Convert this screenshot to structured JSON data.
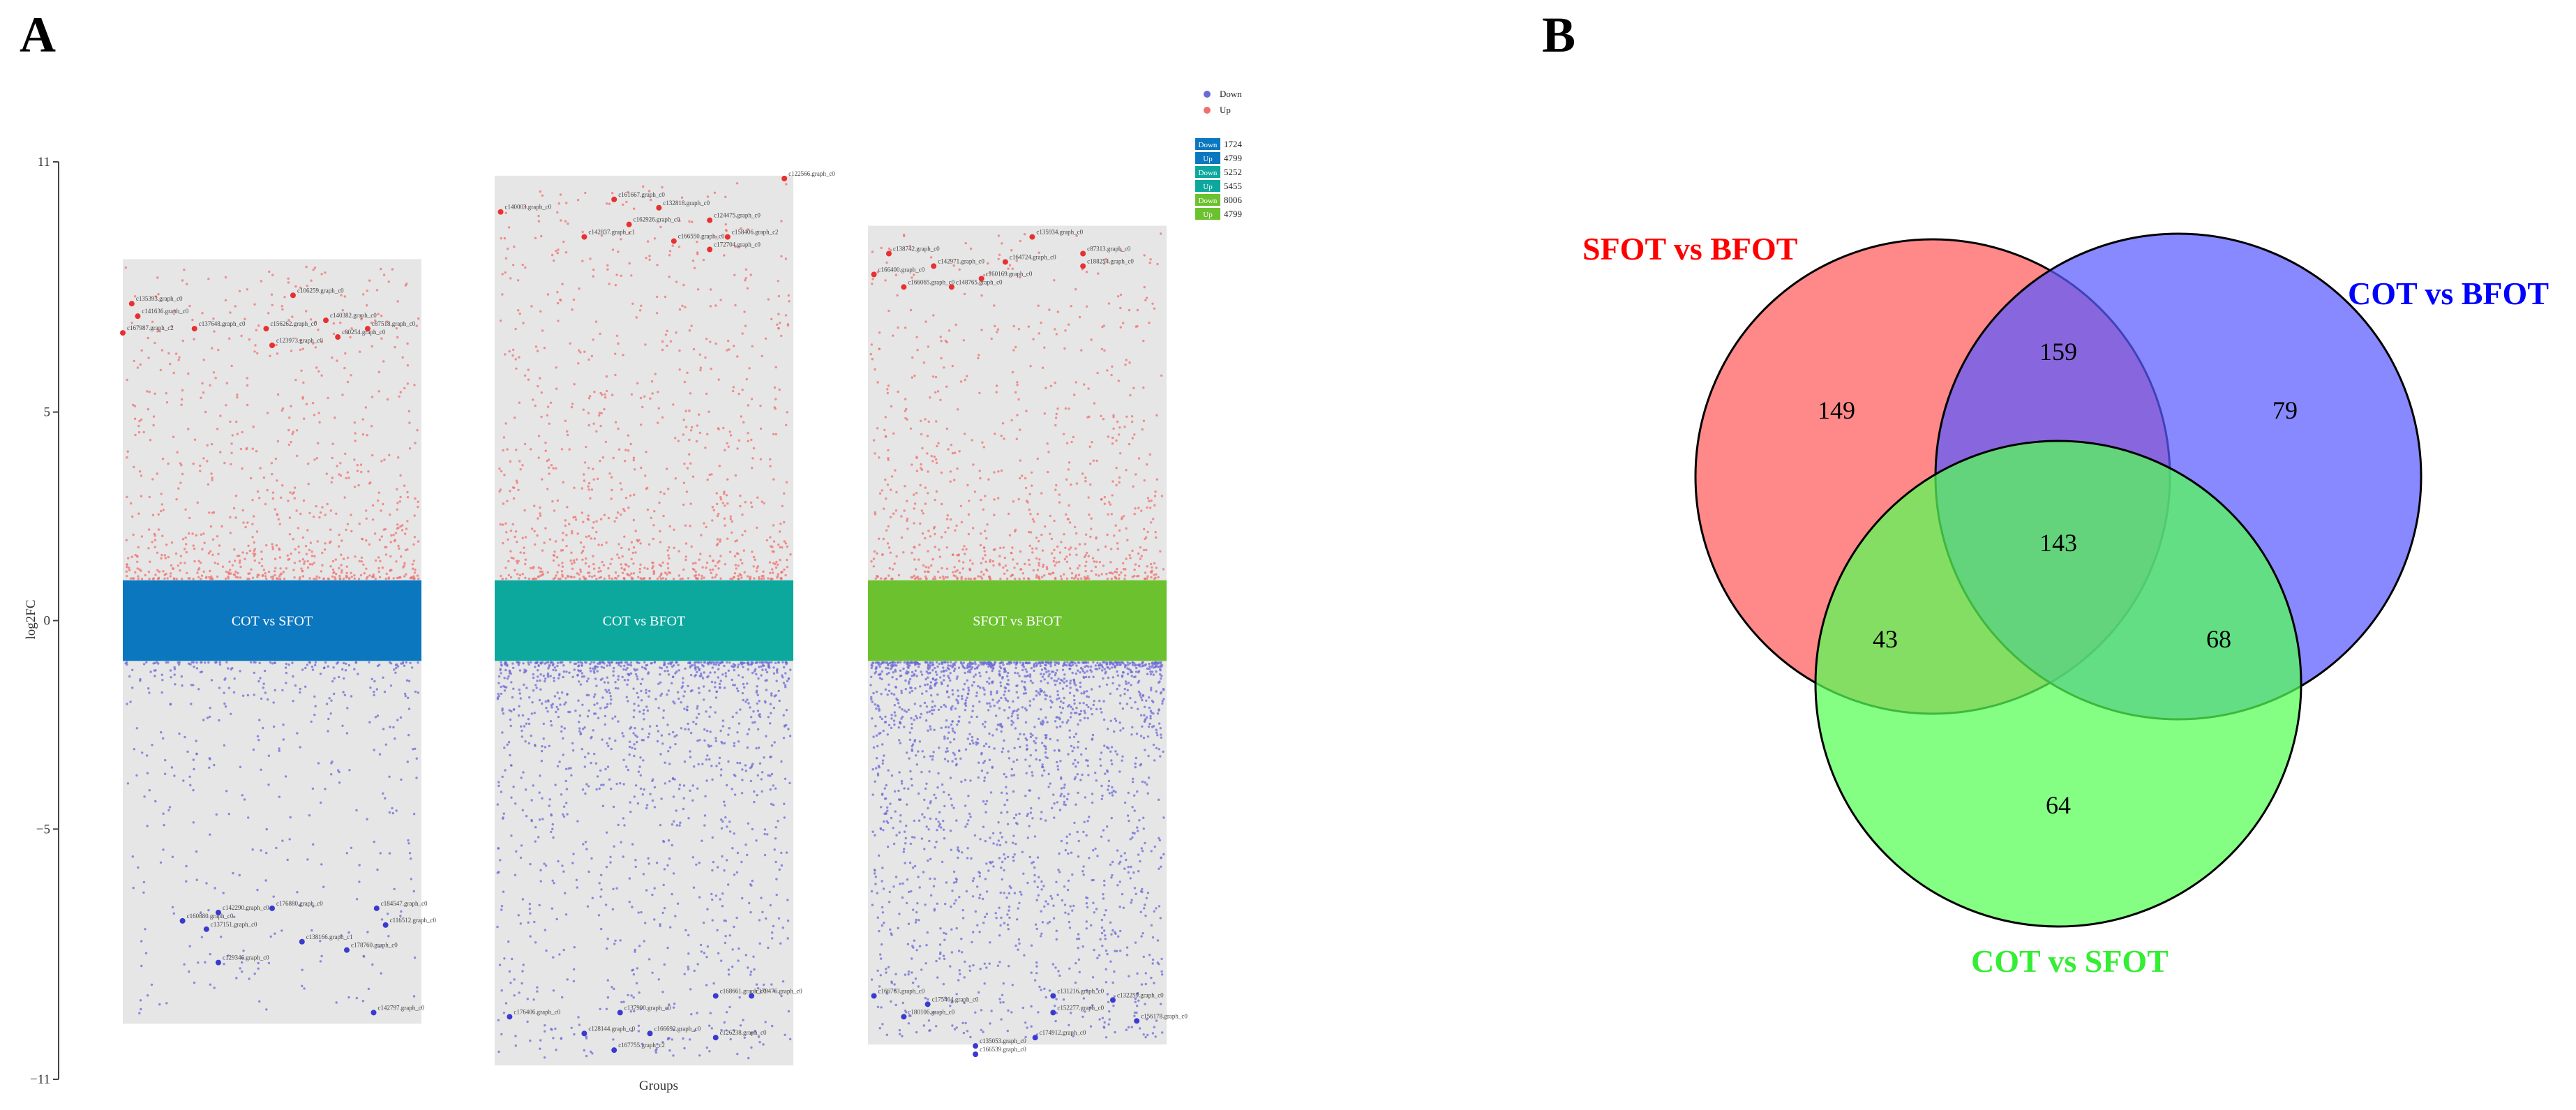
{
  "panels": {
    "a_letter": "A",
    "b_letter": "B"
  },
  "chart_data": [
    {
      "type": "scatter",
      "title": "",
      "xlabel": "Groups",
      "ylabel": "log2FC",
      "ylim": [
        -11,
        11
      ],
      "yticks": [
        {
          "value": 11,
          "label": "11"
        },
        {
          "value": 5,
          "label": "5"
        },
        {
          "value": 0,
          "label": "0"
        },
        {
          "value": -5,
          "label": "−5"
        },
        {
          "value": -11,
          "label": "−11"
        }
      ],
      "legend": {
        "placement": "top-right",
        "items": [
          {
            "label": "Down",
            "color": "#6b6bd6"
          },
          {
            "label": "Up",
            "color": "#f07070"
          }
        ]
      },
      "count_table": [
        {
          "label": "Down",
          "value": "1724",
          "color": "#0a77bf"
        },
        {
          "label": "Up",
          "value": "4799",
          "color": "#0a77bf"
        },
        {
          "label": "Down",
          "value": "5252",
          "color": "#0ca89e"
        },
        {
          "label": "Up",
          "value": "5455",
          "color": "#0ca89e"
        },
        {
          "label": "Down",
          "value": "8006",
          "color": "#6cc12f"
        },
        {
          "label": "Up",
          "value": "4799",
          "color": "#6cc12f"
        }
      ],
      "groups": [
        {
          "name": "COT vs SFOT",
          "band_color": "#0a77bf",
          "up_count": 4799,
          "down_count": 1724,
          "up_range": [
            1.0,
            8.5
          ],
          "down_range": [
            -1.0,
            -9.5
          ],
          "labeled_genes": [
            {
              "label": "c135393.graph_c0",
              "x": 0.03,
              "y": 7.6
            },
            {
              "label": "c141636.graph_c0",
              "x": 0.05,
              "y": 7.3
            },
            {
              "label": "c167987.graph_c2",
              "x": 0.0,
              "y": 6.9
            },
            {
              "label": "c106259.graph_c0",
              "x": 0.57,
              "y": 7.8
            },
            {
              "label": "c137648.graph_c0",
              "x": 0.24,
              "y": 7.0
            },
            {
              "label": "c156262.graph_c0",
              "x": 0.48,
              "y": 7.0
            },
            {
              "label": "c140382.graph_c0",
              "x": 0.68,
              "y": 7.2
            },
            {
              "label": "c87518.graph_c0",
              "x": 0.82,
              "y": 7.0
            },
            {
              "label": "c123973.graph_c0",
              "x": 0.5,
              "y": 6.6
            },
            {
              "label": "c80254.graph_c0",
              "x": 0.72,
              "y": 6.8
            },
            {
              "label": "c160880.graph_c0",
              "x": 0.2,
              "y": -7.2
            },
            {
              "label": "c142290.graph_c0",
              "x": 0.32,
              "y": -7.0
            },
            {
              "label": "c176880.graph_c0",
              "x": 0.5,
              "y": -6.9
            },
            {
              "label": "c137151.graph_c0",
              "x": 0.28,
              "y": -7.4
            },
            {
              "label": "c129346.graph_c0",
              "x": 0.32,
              "y": -8.2
            },
            {
              "label": "c138166.graph_c1",
              "x": 0.6,
              "y": -7.7
            },
            {
              "label": "c178760.graph_c0",
              "x": 0.75,
              "y": -7.9
            },
            {
              "label": "c184547.graph_c0",
              "x": 0.85,
              "y": -6.9
            },
            {
              "label": "c116512.graph_c0",
              "x": 0.88,
              "y": -7.3
            },
            {
              "label": "c142797.graph_c0",
              "x": 0.84,
              "y": -9.4
            }
          ]
        },
        {
          "name": "COT vs BFOT",
          "band_color": "#0ca89e",
          "up_count": 5455,
          "down_count": 5252,
          "up_range": [
            1.0,
            10.5
          ],
          "down_range": [
            -1.0,
            -10.5
          ],
          "labeled_genes": [
            {
              "label": "c140003.graph_c0",
              "x": 0.02,
              "y": 9.8
            },
            {
              "label": "c161667.graph_c0",
              "x": 0.4,
              "y": 10.1
            },
            {
              "label": "c132818.graph_c0",
              "x": 0.55,
              "y": 9.9
            },
            {
              "label": "c122566.graph_c0",
              "x": 0.97,
              "y": 10.6
            },
            {
              "label": "c142837.graph_c1",
              "x": 0.3,
              "y": 9.2
            },
            {
              "label": "c162926.graph_c0",
              "x": 0.45,
              "y": 9.5
            },
            {
              "label": "c124475.graph_c0",
              "x": 0.72,
              "y": 9.6
            },
            {
              "label": "c166550.graph_c0",
              "x": 0.6,
              "y": 9.1
            },
            {
              "label": "c158406.graph_c2",
              "x": 0.78,
              "y": 9.2
            },
            {
              "label": "c172704.graph_c0",
              "x": 0.72,
              "y": 8.9
            },
            {
              "label": "c176406.graph_c0",
              "x": 0.05,
              "y": -9.5
            },
            {
              "label": "c137990.graph_c0",
              "x": 0.42,
              "y": -9.4
            },
            {
              "label": "c128144.graph_c0",
              "x": 0.3,
              "y": -9.9
            },
            {
              "label": "c166692.graph_c0",
              "x": 0.52,
              "y": -9.9
            },
            {
              "label": "c167755.graph_c2",
              "x": 0.4,
              "y": -10.3
            },
            {
              "label": "c168661.graph_c0",
              "x": 0.74,
              "y": -9.0
            },
            {
              "label": "c179476.graph_c0",
              "x": 0.86,
              "y": -9.0
            },
            {
              "label": "c126238.graph_c0",
              "x": 0.74,
              "y": -10.0
            }
          ]
        },
        {
          "name": "SFOT vs BFOT",
          "band_color": "#6cc12f",
          "up_count": 4799,
          "down_count": 8006,
          "up_range": [
            1.0,
            9.3
          ],
          "down_range": [
            -1.0,
            -10.0
          ],
          "labeled_genes": [
            {
              "label": "c135934.graph_c0",
              "x": 0.55,
              "y": 9.2
            },
            {
              "label": "c138742.graph_c0",
              "x": 0.07,
              "y": 8.8
            },
            {
              "label": "c87313.graph_c0",
              "x": 0.72,
              "y": 8.8
            },
            {
              "label": "c142971.graph_c0",
              "x": 0.22,
              "y": 8.5
            },
            {
              "label": "c164724.graph_c0",
              "x": 0.46,
              "y": 8.6
            },
            {
              "label": "c188254.graph_c0",
              "x": 0.72,
              "y": 8.5
            },
            {
              "label": "c166400.graph_c0",
              "x": 0.02,
              "y": 8.3
            },
            {
              "label": "c160169.graph_c0",
              "x": 0.38,
              "y": 8.2
            },
            {
              "label": "c166065.graph_c0",
              "x": 0.12,
              "y": 8.0
            },
            {
              "label": "c148765.graph_c0",
              "x": 0.28,
              "y": 8.0
            },
            {
              "label": "c166763.graph_c0",
              "x": 0.02,
              "y": -9.0
            },
            {
              "label": "c175464.graph_c0",
              "x": 0.2,
              "y": -9.2
            },
            {
              "label": "c180106.graph_c0",
              "x": 0.12,
              "y": -9.5
            },
            {
              "label": "c131216.graph_c0",
              "x": 0.62,
              "y": -9.0
            },
            {
              "label": "c132259.graph_c0",
              "x": 0.82,
              "y": -9.1
            },
            {
              "label": "c152277.graph_c0",
              "x": 0.62,
              "y": -9.4
            },
            {
              "label": "c156178.graph_c0",
              "x": 0.9,
              "y": -9.6
            },
            {
              "label": "c174912.graph_c0",
              "x": 0.56,
              "y": -10.0
            },
            {
              "label": "c135053.graph_c0",
              "x": 0.36,
              "y": -10.2
            },
            {
              "label": "c166539.graph_c0",
              "x": 0.36,
              "y": -10.4
            }
          ]
        }
      ]
    },
    {
      "type": "venn",
      "sets": [
        {
          "name": "SFOT  vs BFOT",
          "color": "#ff0000",
          "fill": "#ff5a5a"
        },
        {
          "name": "COT vs BFOT",
          "color": "#0000ff",
          "fill": "#5a5aff"
        },
        {
          "name": "COT vs SFOT",
          "color": "#33ee33",
          "fill": "#55ff55"
        }
      ],
      "regions": {
        "only_sfot_bfot": "149",
        "sfot_bfot_and_cot_bfot": "159",
        "only_cot_bfot": "79",
        "all_three": "143",
        "sfot_bfot_and_cot_sfot": "43",
        "cot_bfot_and_cot_sfot": "68",
        "only_cot_sfot": "64"
      }
    }
  ]
}
